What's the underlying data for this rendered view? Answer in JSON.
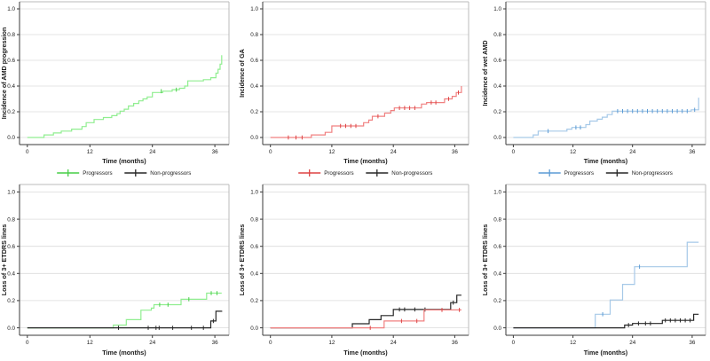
{
  "figure": {
    "background": "#ffffff",
    "colors": {
      "green": "#90EE90",
      "green_dark": "#47CE47",
      "red": "#F08080",
      "red_dark": "#DD4444",
      "blue": "#A6C9E8",
      "blue_dark": "#5B9BD5",
      "black": "#262626",
      "black_dark": "#262626",
      "grid": "#DCDCDC",
      "frame": "#BBBBBB",
      "axis": "#3A3A3A"
    }
  },
  "chart_data": [
    {
      "id": "incidence-amd-progression",
      "type": "line",
      "step": true,
      "ylabel": "Incidence of AMD progression",
      "xlabel": "Time (months)",
      "xticks": [
        0,
        12,
        24,
        36
      ],
      "yticks": [
        0,
        0.2,
        0.4,
        0.6,
        0.8,
        1.0
      ],
      "xlim": [
        -1.5,
        38.7
      ],
      "ylim": [
        -0.055,
        1.055
      ],
      "grid": true,
      "legend_entries": [
        {
          "label": "Progressors",
          "color_key": "green"
        },
        {
          "label": "Non-progressors",
          "color_key": "black"
        }
      ],
      "series": [
        {
          "name": "Progressors",
          "color_key": "green",
          "points": [
            [
              0,
              0
            ],
            [
              3.2,
              0.02
            ],
            [
              5,
              0.035
            ],
            [
              6.5,
              0.05
            ],
            [
              8.5,
              0.065
            ],
            [
              10.5,
              0.085
            ],
            [
              11.3,
              0.115
            ],
            [
              12.8,
              0.14
            ],
            [
              14.6,
              0.155
            ],
            [
              16.2,
              0.17
            ],
            [
              17.2,
              0.185
            ],
            [
              17.8,
              0.205
            ],
            [
              18.6,
              0.22
            ],
            [
              19.4,
              0.245
            ],
            [
              20.4,
              0.265
            ],
            [
              21.4,
              0.285
            ],
            [
              22.2,
              0.3
            ],
            [
              23,
              0.315
            ],
            [
              24,
              0.35
            ],
            [
              26,
              0.36
            ],
            [
              27.8,
              0.372
            ],
            [
              29.2,
              0.383
            ],
            [
              30.2,
              0.4
            ],
            [
              30.8,
              0.44
            ],
            [
              33.8,
              0.45
            ],
            [
              35.2,
              0.465
            ],
            [
              36.2,
              0.5
            ],
            [
              36.6,
              0.53
            ],
            [
              37,
              0.57
            ],
            [
              37.3,
              0.64
            ]
          ],
          "censors": [
            [
              25.7,
              0.36
            ],
            [
              28.6,
              0.372
            ]
          ]
        }
      ]
    },
    {
      "id": "incidence-ga",
      "type": "line",
      "step": true,
      "ylabel": "Incidence of GA",
      "xlabel": "Time (months)",
      "xticks": [
        0,
        12,
        24,
        36
      ],
      "yticks": [
        0,
        0.2,
        0.4,
        0.6,
        0.8,
        1.0
      ],
      "xlim": [
        -1.5,
        38.7
      ],
      "ylim": [
        -0.055,
        1.055
      ],
      "grid": true,
      "legend_entries": [
        {
          "label": "Progressors",
          "color_key": "red"
        },
        {
          "label": "Non-progressors",
          "color_key": "black"
        }
      ],
      "series": [
        {
          "name": "Progressors",
          "color_key": "red",
          "points": [
            [
              0,
              0
            ],
            [
              8,
              0.02
            ],
            [
              10.7,
              0.04
            ],
            [
              12,
              0.09
            ],
            [
              18.2,
              0.115
            ],
            [
              19.2,
              0.135
            ],
            [
              19.9,
              0.165
            ],
            [
              22.3,
              0.19
            ],
            [
              23.5,
              0.21
            ],
            [
              24.2,
              0.23
            ],
            [
              29.5,
              0.26
            ],
            [
              30.5,
              0.272
            ],
            [
              34,
              0.3
            ],
            [
              35.5,
              0.32
            ],
            [
              36.3,
              0.35
            ],
            [
              37.3,
              0.4
            ]
          ],
          "censors": [
            [
              3.5,
              0
            ],
            [
              5,
              0
            ],
            [
              6.2,
              0
            ],
            [
              13.7,
              0.09
            ],
            [
              14.7,
              0.09
            ],
            [
              15.7,
              0.09
            ],
            [
              16.7,
              0.09
            ],
            [
              21,
              0.165
            ],
            [
              25.2,
              0.23
            ],
            [
              26.2,
              0.23
            ],
            [
              27.2,
              0.23
            ],
            [
              28.2,
              0.23
            ],
            [
              31.4,
              0.272
            ],
            [
              32.3,
              0.272
            ],
            [
              34.8,
              0.3
            ],
            [
              36.7,
              0.35
            ]
          ]
        }
      ]
    },
    {
      "id": "incidence-wet-amd",
      "type": "line",
      "step": true,
      "ylabel": "Incidence of wet AMD",
      "xlabel": "Time (months)",
      "xticks": [
        0,
        12,
        24,
        36
      ],
      "yticks": [
        0,
        0.2,
        0.4,
        0.6,
        0.8,
        1.0
      ],
      "xlim": [
        -1.5,
        38.7
      ],
      "ylim": [
        -0.055,
        1.055
      ],
      "grid": true,
      "legend_entries": [
        {
          "label": "Progressors",
          "color_key": "blue"
        },
        {
          "label": "Non-progressors",
          "color_key": "black"
        }
      ],
      "series": [
        {
          "name": "Progressors",
          "color_key": "blue",
          "points": [
            [
              0,
              0
            ],
            [
              4,
              0.02
            ],
            [
              5,
              0.05
            ],
            [
              10.8,
              0.065
            ],
            [
              11.8,
              0.078
            ],
            [
              14.6,
              0.1
            ],
            [
              15.4,
              0.128
            ],
            [
              16.9,
              0.142
            ],
            [
              17.9,
              0.158
            ],
            [
              18.9,
              0.178
            ],
            [
              19.9,
              0.205
            ],
            [
              35.8,
              0.215
            ],
            [
              37.3,
              0.31
            ]
          ],
          "censors": [
            [
              7,
              0.05
            ],
            [
              12.6,
              0.078
            ],
            [
              13.5,
              0.078
            ],
            [
              21,
              0.205
            ],
            [
              22,
              0.205
            ],
            [
              23,
              0.205
            ],
            [
              24,
              0.205
            ],
            [
              25,
              0.205
            ],
            [
              26,
              0.205
            ],
            [
              27,
              0.205
            ],
            [
              28,
              0.205
            ],
            [
              29,
              0.205
            ],
            [
              30,
              0.205
            ],
            [
              31,
              0.205
            ],
            [
              32,
              0.205
            ],
            [
              33,
              0.205
            ],
            [
              34,
              0.205
            ],
            [
              35,
              0.205
            ],
            [
              36.5,
              0.215
            ]
          ]
        }
      ]
    },
    {
      "id": "etdrs-loss-progressors-green",
      "type": "line",
      "step": true,
      "ylabel": "Loss of 3+ ETDRS lines",
      "xlabel": "Time (months)",
      "xticks": [
        0,
        12,
        24,
        36
      ],
      "yticks": [
        0,
        0.2,
        0.4,
        0.6,
        0.8,
        1.0
      ],
      "xlim": [
        -1.5,
        38.7
      ],
      "ylim": [
        -0.055,
        1.055
      ],
      "grid": true,
      "legend_entries": [],
      "series": [
        {
          "name": "Progressors",
          "color_key": "green",
          "points": [
            [
              0,
              0
            ],
            [
              16.5,
              0.02
            ],
            [
              19,
              0.06
            ],
            [
              21.8,
              0.13
            ],
            [
              23.8,
              0.145
            ],
            [
              24.3,
              0.17
            ],
            [
              29.5,
              0.21
            ],
            [
              34.4,
              0.255
            ],
            [
              37.3,
              0.255
            ]
          ],
          "censors": [
            [
              25.4,
              0.17
            ],
            [
              27,
              0.17
            ],
            [
              31,
              0.21
            ],
            [
              35.3,
              0.255
            ],
            [
              36.4,
              0.255
            ]
          ]
        },
        {
          "name": "Non-progressors",
          "color_key": "black",
          "points": [
            [
              0,
              0
            ],
            [
              35.2,
              0.05
            ],
            [
              36.2,
              0.122
            ],
            [
              37.3,
              0.125
            ]
          ],
          "censors": [
            [
              17.5,
              0
            ],
            [
              23.2,
              0
            ],
            [
              24.7,
              0
            ],
            [
              25.3,
              0
            ],
            [
              27.9,
              0
            ],
            [
              31.5,
              0
            ],
            [
              33.8,
              0
            ],
            [
              35.7,
              0.05
            ]
          ]
        }
      ]
    },
    {
      "id": "etdrs-loss-progressors-red",
      "type": "line",
      "step": true,
      "ylabel": "Loss of 3+ ETDRS lines",
      "xlabel": "Time (months)",
      "xticks": [
        0,
        12,
        24,
        36
      ],
      "yticks": [
        0,
        0.2,
        0.4,
        0.6,
        0.8,
        1.0
      ],
      "xlim": [
        -1.5,
        38.7
      ],
      "ylim": [
        -0.055,
        1.055
      ],
      "grid": true,
      "legend_entries": [],
      "series": [
        {
          "name": "Non-progressors",
          "color_key": "black",
          "points": [
            [
              0,
              0
            ],
            [
              16,
              0.03
            ],
            [
              19.3,
              0.06
            ],
            [
              21.6,
              0.09
            ],
            [
              24,
              0.135
            ],
            [
              35.2,
              0.185
            ],
            [
              36.4,
              0.24
            ],
            [
              37.3,
              0.24
            ]
          ],
          "censors": [
            [
              25.2,
              0.135
            ],
            [
              26.2,
              0.135
            ],
            [
              28.2,
              0.135
            ],
            [
              30.2,
              0.135
            ],
            [
              35.7,
              0.185
            ]
          ]
        },
        {
          "name": "Progressors",
          "color_key": "red",
          "points": [
            [
              0,
              0
            ],
            [
              22.2,
              0.05
            ],
            [
              30,
              0.132
            ],
            [
              37.3,
              0.132
            ]
          ],
          "censors": [
            [
              19.5,
              0
            ],
            [
              25.6,
              0.05
            ],
            [
              28.6,
              0.05
            ],
            [
              33.5,
              0.132
            ],
            [
              36.9,
              0.132
            ]
          ]
        }
      ]
    },
    {
      "id": "etdrs-loss-progressors-blue",
      "type": "line",
      "step": true,
      "ylabel": "Loss of 3+ ETDRS lines",
      "xlabel": "Time (months)",
      "xticks": [
        0,
        12,
        24,
        36
      ],
      "yticks": [
        0,
        0.2,
        0.4,
        0.6,
        0.8,
        1.0
      ],
      "xlim": [
        -1.5,
        38.7
      ],
      "ylim": [
        -0.055,
        1.055
      ],
      "grid": true,
      "legend_entries": [],
      "series": [
        {
          "name": "Progressors",
          "color_key": "blue",
          "points": [
            [
              0,
              0
            ],
            [
              16.5,
              0.1
            ],
            [
              19.5,
              0.205
            ],
            [
              22,
              0.32
            ],
            [
              24.4,
              0.45
            ],
            [
              35,
              0.63
            ],
            [
              37.3,
              0.63
            ]
          ],
          "censors": [
            [
              18,
              0.1
            ],
            [
              25.4,
              0.45
            ]
          ]
        },
        {
          "name": "Non-progressors",
          "color_key": "black",
          "points": [
            [
              0,
              0
            ],
            [
              22.4,
              0.02
            ],
            [
              24,
              0.032
            ],
            [
              30,
              0.055
            ],
            [
              36.3,
              0.1
            ],
            [
              37.3,
              0.1
            ]
          ],
          "censors": [
            [
              23.2,
              0.02
            ],
            [
              25.2,
              0.032
            ],
            [
              26.6,
              0.032
            ],
            [
              27.6,
              0.032
            ],
            [
              30.6,
              0.055
            ],
            [
              31.6,
              0.055
            ],
            [
              32.6,
              0.055
            ],
            [
              33.6,
              0.055
            ],
            [
              34.6,
              0.055
            ],
            [
              35.6,
              0.055
            ]
          ]
        }
      ]
    }
  ]
}
